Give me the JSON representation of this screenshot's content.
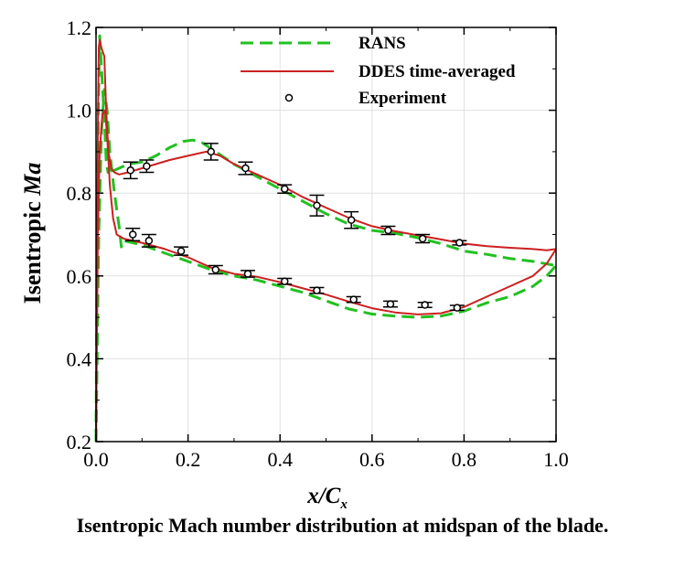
{
  "caption": "Isentropic Mach number distribution at midspan of the blade.",
  "chart_data": {
    "type": "line",
    "xlabel": "x/C",
    "xlabel_sub": "x",
    "ylabel_prefix": "Isentropic ",
    "ylabel_italic": "Ma",
    "xlim": [
      0.0,
      1.0
    ],
    "ylim": [
      0.2,
      1.2
    ],
    "x_ticks": [
      "0.0",
      "0.2",
      "0.4",
      "0.6",
      "0.8",
      "1.0"
    ],
    "y_ticks": [
      "0.2",
      "0.4",
      "0.6",
      "0.8",
      "1.0",
      "1.2"
    ],
    "grid": true,
    "legend_position": "top-right",
    "series": [
      {
        "name": "RANS",
        "style": "dashed",
        "color": "#22c022",
        "suction_side": [
          [
            0.0,
            0.2
          ],
          [
            0.002,
            0.6
          ],
          [
            0.005,
            1.0
          ],
          [
            0.008,
            1.18
          ],
          [
            0.012,
            1.1
          ],
          [
            0.018,
            0.98
          ],
          [
            0.022,
            0.88
          ],
          [
            0.026,
            0.85
          ],
          [
            0.03,
            0.86
          ],
          [
            0.034,
            0.845
          ],
          [
            0.04,
            0.855
          ],
          [
            0.05,
            0.86
          ],
          [
            0.07,
            0.87
          ],
          [
            0.1,
            0.875
          ],
          [
            0.13,
            0.89
          ],
          [
            0.16,
            0.91
          ],
          [
            0.19,
            0.925
          ],
          [
            0.21,
            0.928
          ],
          [
            0.23,
            0.922
          ],
          [
            0.26,
            0.9
          ],
          [
            0.3,
            0.87
          ],
          [
            0.35,
            0.84
          ],
          [
            0.4,
            0.81
          ],
          [
            0.45,
            0.78
          ],
          [
            0.5,
            0.75
          ],
          [
            0.55,
            0.725
          ],
          [
            0.6,
            0.71
          ],
          [
            0.65,
            0.703
          ],
          [
            0.7,
            0.692
          ],
          [
            0.75,
            0.678
          ],
          [
            0.8,
            0.66
          ],
          [
            0.85,
            0.652
          ],
          [
            0.9,
            0.642
          ],
          [
            0.95,
            0.635
          ],
          [
            1.0,
            0.625
          ]
        ],
        "pressure_side": [
          [
            0.0,
            0.2
          ],
          [
            0.006,
            0.7
          ],
          [
            0.012,
            0.95
          ],
          [
            0.018,
            1.05
          ],
          [
            0.024,
            1.0
          ],
          [
            0.03,
            0.9
          ],
          [
            0.04,
            0.8
          ],
          [
            0.05,
            0.72
          ],
          [
            0.055,
            0.67
          ],
          [
            0.06,
            0.685
          ],
          [
            0.1,
            0.675
          ],
          [
            0.15,
            0.655
          ],
          [
            0.2,
            0.635
          ],
          [
            0.25,
            0.615
          ],
          [
            0.3,
            0.6
          ],
          [
            0.35,
            0.59
          ],
          [
            0.4,
            0.575
          ],
          [
            0.45,
            0.56
          ],
          [
            0.5,
            0.54
          ],
          [
            0.55,
            0.52
          ],
          [
            0.6,
            0.508
          ],
          [
            0.65,
            0.503
          ],
          [
            0.7,
            0.5
          ],
          [
            0.75,
            0.503
          ],
          [
            0.8,
            0.515
          ],
          [
            0.85,
            0.535
          ],
          [
            0.9,
            0.55
          ],
          [
            0.95,
            0.575
          ],
          [
            0.98,
            0.6
          ],
          [
            1.0,
            0.625
          ]
        ]
      },
      {
        "name": "DDES time-averaged",
        "style": "solid",
        "color": "#cc2020",
        "suction_side": [
          [
            0.0,
            0.2
          ],
          [
            0.002,
            0.6
          ],
          [
            0.004,
            0.95
          ],
          [
            0.006,
            1.15
          ],
          [
            0.008,
            1.17
          ],
          [
            0.012,
            1.15
          ],
          [
            0.018,
            1.13
          ],
          [
            0.022,
            1.0
          ],
          [
            0.027,
            0.9
          ],
          [
            0.033,
            0.86
          ],
          [
            0.04,
            0.85
          ],
          [
            0.05,
            0.845
          ],
          [
            0.07,
            0.85
          ],
          [
            0.1,
            0.86
          ],
          [
            0.13,
            0.87
          ],
          [
            0.16,
            0.88
          ],
          [
            0.2,
            0.89
          ],
          [
            0.24,
            0.9
          ],
          [
            0.27,
            0.89
          ],
          [
            0.3,
            0.87
          ],
          [
            0.35,
            0.845
          ],
          [
            0.4,
            0.82
          ],
          [
            0.45,
            0.79
          ],
          [
            0.5,
            0.765
          ],
          [
            0.55,
            0.74
          ],
          [
            0.6,
            0.72
          ],
          [
            0.65,
            0.708
          ],
          [
            0.7,
            0.698
          ],
          [
            0.75,
            0.688
          ],
          [
            0.8,
            0.678
          ],
          [
            0.85,
            0.672
          ],
          [
            0.9,
            0.668
          ],
          [
            0.95,
            0.665
          ],
          [
            0.98,
            0.662
          ],
          [
            1.0,
            0.665
          ]
        ],
        "pressure_side": [
          [
            0.0,
            0.2
          ],
          [
            0.004,
            0.7
          ],
          [
            0.008,
            0.9
          ],
          [
            0.014,
            0.99
          ],
          [
            0.02,
            1.0
          ],
          [
            0.025,
            0.92
          ],
          [
            0.03,
            0.82
          ],
          [
            0.037,
            0.74
          ],
          [
            0.045,
            0.7
          ],
          [
            0.06,
            0.69
          ],
          [
            0.1,
            0.68
          ],
          [
            0.15,
            0.665
          ],
          [
            0.2,
            0.645
          ],
          [
            0.25,
            0.62
          ],
          [
            0.3,
            0.605
          ],
          [
            0.35,
            0.598
          ],
          [
            0.4,
            0.585
          ],
          [
            0.45,
            0.57
          ],
          [
            0.5,
            0.555
          ],
          [
            0.55,
            0.538
          ],
          [
            0.6,
            0.522
          ],
          [
            0.65,
            0.512
          ],
          [
            0.7,
            0.507
          ],
          [
            0.75,
            0.51
          ],
          [
            0.8,
            0.525
          ],
          [
            0.85,
            0.55
          ],
          [
            0.9,
            0.575
          ],
          [
            0.95,
            0.6
          ],
          [
            0.98,
            0.63
          ],
          [
            1.0,
            0.665
          ]
        ]
      },
      {
        "name": "Experiment",
        "style": "markers",
        "color": "#000000",
        "points": [
          {
            "x": 0.075,
            "y": 0.855,
            "err": 0.02
          },
          {
            "x": 0.11,
            "y": 0.865,
            "err": 0.015
          },
          {
            "x": 0.25,
            "y": 0.9,
            "err": 0.02
          },
          {
            "x": 0.325,
            "y": 0.86,
            "err": 0.015
          },
          {
            "x": 0.41,
            "y": 0.81,
            "err": 0.01
          },
          {
            "x": 0.48,
            "y": 0.77,
            "err": 0.025
          },
          {
            "x": 0.555,
            "y": 0.735,
            "err": 0.02
          },
          {
            "x": 0.635,
            "y": 0.71,
            "err": 0.01
          },
          {
            "x": 0.71,
            "y": 0.69,
            "err": 0.01
          },
          {
            "x": 0.79,
            "y": 0.68,
            "err": 0.005
          },
          {
            "x": 0.08,
            "y": 0.7,
            "err": 0.015
          },
          {
            "x": 0.115,
            "y": 0.685,
            "err": 0.015
          },
          {
            "x": 0.185,
            "y": 0.66,
            "err": 0.01
          },
          {
            "x": 0.26,
            "y": 0.615,
            "err": 0.01
          },
          {
            "x": 0.33,
            "y": 0.605,
            "err": 0.008
          },
          {
            "x": 0.41,
            "y": 0.587,
            "err": 0.007
          },
          {
            "x": 0.48,
            "y": 0.565,
            "err": 0.007
          },
          {
            "x": 0.56,
            "y": 0.543,
            "err": 0.007
          },
          {
            "x": 0.64,
            "y": 0.532,
            "err": 0.007
          },
          {
            "x": 0.715,
            "y": 0.53,
            "err": 0.006
          },
          {
            "x": 0.785,
            "y": 0.523,
            "err": 0.006
          }
        ]
      }
    ]
  }
}
